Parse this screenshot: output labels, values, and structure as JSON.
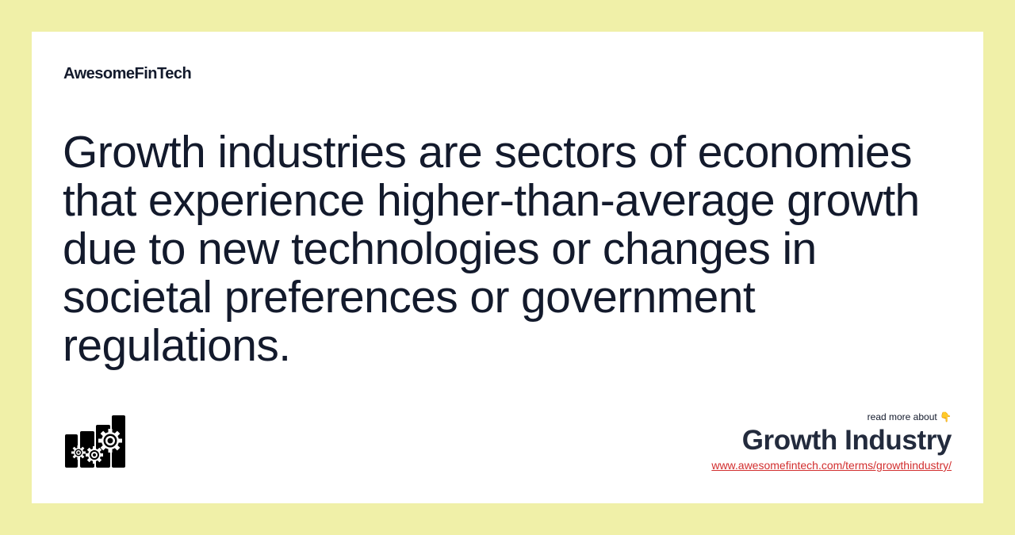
{
  "brand": "AwesomeFinTech",
  "definition": "Growth industries are sectors of economies that experience higher-than-average growth due to new technologies or changes in societal preferences or government regulations.",
  "read_more": "read more about 👇",
  "term": "Growth Industry",
  "url": "www.awesomefintech.com/terms/growthindustry/",
  "logo_icon": "bar-chart-gears-icon",
  "colors": {
    "background": "#f0f0a8",
    "card": "#ffffff",
    "text": "#131a2c",
    "link": "#d22e2e"
  }
}
